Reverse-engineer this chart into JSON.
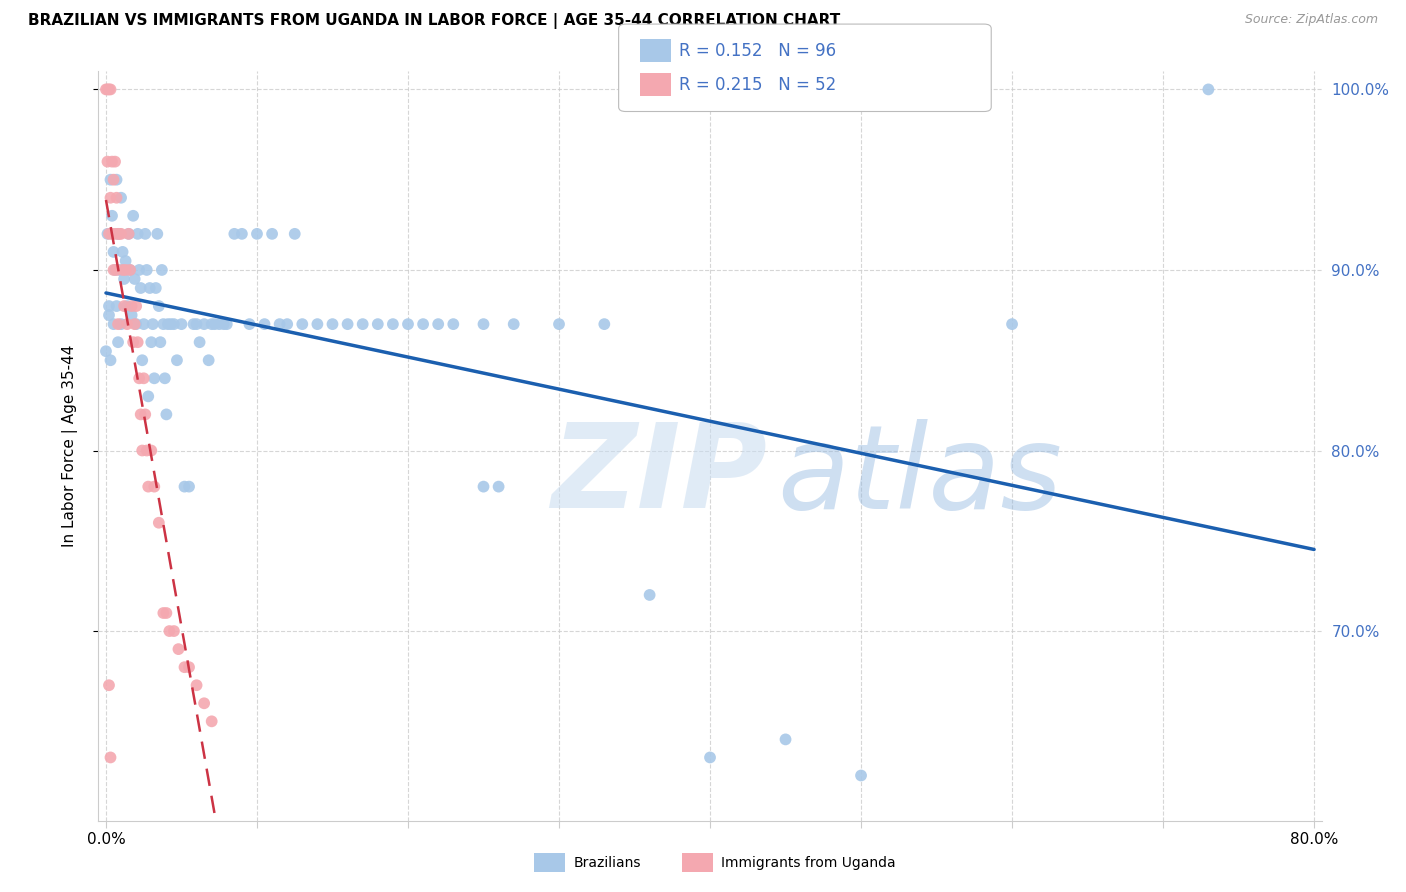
{
  "title": "BRAZILIAN VS IMMIGRANTS FROM UGANDA IN LABOR FORCE | AGE 35-44 CORRELATION CHART",
  "source": "Source: ZipAtlas.com",
  "ylabel": "In Labor Force | Age 35-44",
  "xlim": [
    -0.005,
    0.805
  ],
  "ylim": [
    0.595,
    1.01
  ],
  "blue_R": 0.152,
  "blue_N": 96,
  "pink_R": 0.215,
  "pink_N": 52,
  "blue_dot_color": "#A8C8E8",
  "pink_dot_color": "#F4A8B0",
  "blue_line_color": "#1B5FAF",
  "pink_line_color": "#CC3344",
  "right_tick_color": "#4472C4",
  "ytick_positions": [
    0.7,
    0.8,
    0.9,
    1.0
  ],
  "ytick_labels": [
    "70.0%",
    "80.0%",
    "90.0%",
    "100.0%"
  ],
  "grid_color": "#CCCCCC",
  "blue_x": [
    0.0,
    0.001,
    0.002,
    0.003,
    0.004,
    0.005,
    0.005,
    0.006,
    0.007,
    0.007,
    0.008,
    0.008,
    0.009,
    0.01,
    0.01,
    0.011,
    0.012,
    0.013,
    0.014,
    0.015,
    0.016,
    0.017,
    0.018,
    0.019,
    0.02,
    0.021,
    0.022,
    0.023,
    0.024,
    0.025,
    0.026,
    0.027,
    0.028,
    0.029,
    0.03,
    0.031,
    0.032,
    0.033,
    0.034,
    0.035,
    0.036,
    0.037,
    0.038,
    0.039,
    0.04,
    0.041,
    0.043,
    0.045,
    0.047,
    0.05,
    0.052,
    0.055,
    0.058,
    0.06,
    0.062,
    0.065,
    0.068,
    0.07,
    0.072,
    0.075,
    0.078,
    0.08,
    0.085,
    0.09,
    0.095,
    0.1,
    0.105,
    0.11,
    0.115,
    0.12,
    0.125,
    0.13,
    0.14,
    0.15,
    0.16,
    0.17,
    0.18,
    0.19,
    0.2,
    0.21,
    0.22,
    0.23,
    0.25,
    0.27,
    0.3,
    0.33,
    0.36,
    0.4,
    0.45,
    0.5,
    0.6,
    0.73,
    0.002,
    0.003,
    0.25,
    0.26
  ],
  "blue_y": [
    0.855,
    0.92,
    0.88,
    0.95,
    0.93,
    0.87,
    0.91,
    0.9,
    0.88,
    0.95,
    0.92,
    0.86,
    0.9,
    0.94,
    0.87,
    0.91,
    0.895,
    0.905,
    0.88,
    0.92,
    0.9,
    0.875,
    0.93,
    0.895,
    0.87,
    0.92,
    0.9,
    0.89,
    0.85,
    0.87,
    0.92,
    0.9,
    0.83,
    0.89,
    0.86,
    0.87,
    0.84,
    0.89,
    0.92,
    0.88,
    0.86,
    0.9,
    0.87,
    0.84,
    0.82,
    0.87,
    0.87,
    0.87,
    0.85,
    0.87,
    0.78,
    0.78,
    0.87,
    0.87,
    0.86,
    0.87,
    0.85,
    0.87,
    0.87,
    0.87,
    0.87,
    0.87,
    0.92,
    0.92,
    0.87,
    0.92,
    0.87,
    0.92,
    0.87,
    0.87,
    0.92,
    0.87,
    0.87,
    0.87,
    0.87,
    0.87,
    0.87,
    0.87,
    0.87,
    0.87,
    0.87,
    0.87,
    0.87,
    0.87,
    0.87,
    0.87,
    0.72,
    0.63,
    0.64,
    0.62,
    0.87,
    1.0,
    0.875,
    0.85,
    0.78,
    0.78
  ],
  "pink_x": [
    0.0,
    0.001,
    0.001,
    0.002,
    0.002,
    0.003,
    0.003,
    0.004,
    0.004,
    0.005,
    0.005,
    0.006,
    0.006,
    0.007,
    0.007,
    0.008,
    0.008,
    0.009,
    0.01,
    0.011,
    0.012,
    0.013,
    0.014,
    0.015,
    0.016,
    0.017,
    0.018,
    0.019,
    0.02,
    0.021,
    0.022,
    0.023,
    0.024,
    0.025,
    0.026,
    0.027,
    0.028,
    0.03,
    0.032,
    0.035,
    0.038,
    0.04,
    0.042,
    0.045,
    0.048,
    0.052,
    0.055,
    0.06,
    0.065,
    0.07,
    0.002,
    0.003
  ],
  "pink_y": [
    1.0,
    1.0,
    0.96,
    1.0,
    0.92,
    1.0,
    0.94,
    0.96,
    0.92,
    0.95,
    0.9,
    0.96,
    0.92,
    0.94,
    0.9,
    0.92,
    0.87,
    0.92,
    0.92,
    0.9,
    0.88,
    0.9,
    0.87,
    0.92,
    0.9,
    0.88,
    0.86,
    0.87,
    0.88,
    0.86,
    0.84,
    0.82,
    0.8,
    0.84,
    0.82,
    0.8,
    0.78,
    0.8,
    0.78,
    0.76,
    0.71,
    0.71,
    0.7,
    0.7,
    0.69,
    0.68,
    0.68,
    0.67,
    0.66,
    0.65,
    0.67,
    0.63
  ]
}
